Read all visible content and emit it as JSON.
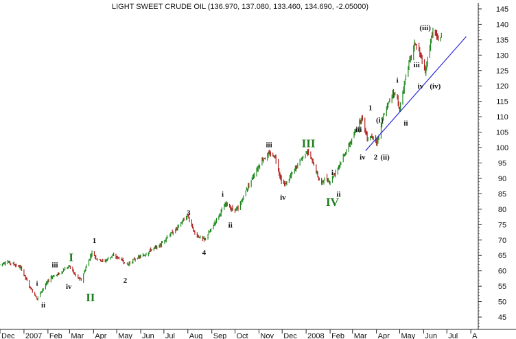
{
  "chart_data": {
    "type": "ohlc",
    "title": "LIGHT SWEET CRUDE OIL (136.970, 137.080, 133.460, 134.690, -2.05000)",
    "y_axis": {
      "ylim": [
        41,
        147
      ],
      "ticks": [
        45,
        50,
        55,
        60,
        65,
        70,
        75,
        80,
        85,
        90,
        95,
        100,
        105,
        110,
        115,
        120,
        125,
        130,
        135,
        140,
        145
      ],
      "position": "right"
    },
    "x_axis": {
      "range": [
        "2006-12-01",
        "2008-07-31"
      ],
      "tick_labels": [
        {
          "date": "2006-12-01",
          "label": "Dec"
        },
        {
          "date": "2007-01-01",
          "label": "2007"
        },
        {
          "date": "2007-02-01",
          "label": "Feb"
        },
        {
          "date": "2007-03-01",
          "label": "Mar"
        },
        {
          "date": "2007-04-01",
          "label": "Apr"
        },
        {
          "date": "2007-05-01",
          "label": "May"
        },
        {
          "date": "2007-06-01",
          "label": "Jun"
        },
        {
          "date": "2007-07-01",
          "label": "Jul"
        },
        {
          "date": "2007-08-01",
          "label": "Aug"
        },
        {
          "date": "2007-09-01",
          "label": "Sep"
        },
        {
          "date": "2007-10-01",
          "label": "Oct"
        },
        {
          "date": "2007-11-01",
          "label": "Nov"
        },
        {
          "date": "2007-12-01",
          "label": "Dec"
        },
        {
          "date": "2008-01-01",
          "label": "2008"
        },
        {
          "date": "2008-02-01",
          "label": "Feb"
        },
        {
          "date": "2008-03-01",
          "label": "Mar"
        },
        {
          "date": "2008-04-01",
          "label": "Apr"
        },
        {
          "date": "2008-05-01",
          "label": "May"
        },
        {
          "date": "2008-06-01",
          "label": "Jun"
        },
        {
          "date": "2008-07-01",
          "label": "Jul"
        },
        {
          "date": "2008-08-01",
          "label": "A"
        }
      ]
    },
    "price_path": [
      [
        "2006-12-01",
        62
      ],
      [
        "2006-12-10",
        63
      ],
      [
        "2006-12-20",
        62
      ],
      [
        "2006-12-28",
        61
      ],
      [
        "2007-01-08",
        55
      ],
      [
        "2007-01-18",
        51
      ],
      [
        "2007-01-25",
        54
      ],
      [
        "2007-02-05",
        58
      ],
      [
        "2007-02-15",
        59
      ],
      [
        "2007-02-25",
        61
      ],
      [
        "2007-03-01",
        61.5
      ],
      [
        "2007-03-10",
        58
      ],
      [
        "2007-03-16",
        57
      ],
      [
        "2007-03-22",
        61
      ],
      [
        "2007-03-30",
        66
      ],
      [
        "2007-04-05",
        64
      ],
      [
        "2007-04-15",
        63
      ],
      [
        "2007-04-25",
        65
      ],
      [
        "2007-05-05",
        64
      ],
      [
        "2007-05-15",
        62
      ],
      [
        "2007-05-25",
        64
      ],
      [
        "2007-06-05",
        65
      ],
      [
        "2007-06-15",
        67
      ],
      [
        "2007-06-25",
        68
      ],
      [
        "2007-07-05",
        71
      ],
      [
        "2007-07-15",
        73
      ],
      [
        "2007-07-25",
        76
      ],
      [
        "2007-08-01",
        78
      ],
      [
        "2007-08-10",
        72
      ],
      [
        "2007-08-22",
        70
      ],
      [
        "2007-08-30",
        73
      ],
      [
        "2007-09-10",
        78
      ],
      [
        "2007-09-20",
        82
      ],
      [
        "2007-09-26",
        80
      ],
      [
        "2007-10-05",
        80
      ],
      [
        "2007-10-15",
        86
      ],
      [
        "2007-10-25",
        91
      ],
      [
        "2007-11-05",
        96
      ],
      [
        "2007-11-15",
        98
      ],
      [
        "2007-11-22",
        97
      ],
      [
        "2007-11-30",
        89
      ],
      [
        "2007-12-05",
        88
      ],
      [
        "2007-12-15",
        92
      ],
      [
        "2007-12-25",
        96
      ],
      [
        "2008-01-02",
        99
      ],
      [
        "2008-01-10",
        95
      ],
      [
        "2008-01-20",
        88
      ],
      [
        "2008-01-25",
        90
      ],
      [
        "2008-02-01",
        89
      ],
      [
        "2008-02-10",
        93
      ],
      [
        "2008-02-20",
        98
      ],
      [
        "2008-03-01",
        103
      ],
      [
        "2008-03-13",
        110
      ],
      [
        "2008-03-20",
        103
      ],
      [
        "2008-03-28",
        104
      ],
      [
        "2008-04-01",
        101
      ],
      [
        "2008-04-10",
        110
      ],
      [
        "2008-04-22",
        118
      ],
      [
        "2008-04-28",
        116
      ],
      [
        "2008-05-01",
        112
      ],
      [
        "2008-05-10",
        125
      ],
      [
        "2008-05-21",
        134
      ],
      [
        "2008-05-28",
        130
      ],
      [
        "2008-06-03",
        124
      ],
      [
        "2008-06-08",
        132
      ],
      [
        "2008-06-13",
        138
      ],
      [
        "2008-06-20",
        135
      ],
      [
        "2008-06-24",
        136
      ]
    ],
    "trendline": {
      "from": [
        "2008-03-18",
        99
      ],
      "to": [
        "2008-07-26",
        136
      ]
    },
    "wave_labels": [
      {
        "text": "i",
        "date": "2007-01-18",
        "price": 56,
        "style": "small"
      },
      {
        "text": "ii",
        "date": "2007-01-26",
        "price": 49,
        "style": "small"
      },
      {
        "text": "iii",
        "date": "2007-02-10",
        "price": 62,
        "style": "small"
      },
      {
        "text": "I",
        "date": "2007-03-03",
        "price": 64,
        "style": "big"
      },
      {
        "text": "iv",
        "date": "2007-02-28",
        "price": 55,
        "style": "small"
      },
      {
        "text": "1",
        "date": "2007-04-02",
        "price": 70,
        "style": "small"
      },
      {
        "text": "II",
        "date": "2007-03-28",
        "price": 51,
        "style": "big"
      },
      {
        "text": "2",
        "date": "2007-05-12",
        "price": 57,
        "style": "small"
      },
      {
        "text": "3",
        "date": "2007-08-02",
        "price": 79,
        "style": "small"
      },
      {
        "text": "4",
        "date": "2007-08-22",
        "price": 66,
        "style": "small"
      },
      {
        "text": "i",
        "date": "2007-09-15",
        "price": 85,
        "style": "small"
      },
      {
        "text": "ii",
        "date": "2007-09-25",
        "price": 75,
        "style": "small"
      },
      {
        "text": "iii",
        "date": "2007-11-14",
        "price": 101,
        "style": "small"
      },
      {
        "text": "iv",
        "date": "2007-12-02",
        "price": 84,
        "style": "small"
      },
      {
        "text": "III",
        "date": "2008-01-04",
        "price": 101,
        "style": "big"
      },
      {
        "text": "i",
        "date": "2008-02-04",
        "price": 92,
        "style": "small"
      },
      {
        "text": "IV",
        "date": "2008-02-04",
        "price": 82,
        "style": "big"
      },
      {
        "text": "ii",
        "date": "2008-02-12",
        "price": 85,
        "style": "small"
      },
      {
        "text": "iii",
        "date": "2008-03-09",
        "price": 106,
        "style": "small"
      },
      {
        "text": "iv",
        "date": "2008-03-14",
        "price": 97,
        "style": "small"
      },
      {
        "text": "1",
        "date": "2008-03-24",
        "price": 113,
        "style": "small"
      },
      {
        "text": "2",
        "date": "2008-03-31",
        "price": 97,
        "style": "small"
      },
      {
        "text": "(i)",
        "date": "2008-04-05",
        "price": 109,
        "style": "small"
      },
      {
        "text": "(ii)",
        "date": "2008-04-12",
        "price": 97,
        "style": "small"
      },
      {
        "text": "i",
        "date": "2008-04-28",
        "price": 122,
        "style": "small"
      },
      {
        "text": "ii",
        "date": "2008-05-09",
        "price": 108,
        "style": "small"
      },
      {
        "text": "iii",
        "date": "2008-05-23",
        "price": 127,
        "style": "small"
      },
      {
        "text": "iv",
        "date": "2008-05-28",
        "price": 120,
        "style": "small"
      },
      {
        "text": "(iii)",
        "date": "2008-06-03",
        "price": 139,
        "style": "small"
      },
      {
        "text": "(iv)",
        "date": "2008-06-16",
        "price": 120,
        "style": "small"
      }
    ]
  }
}
